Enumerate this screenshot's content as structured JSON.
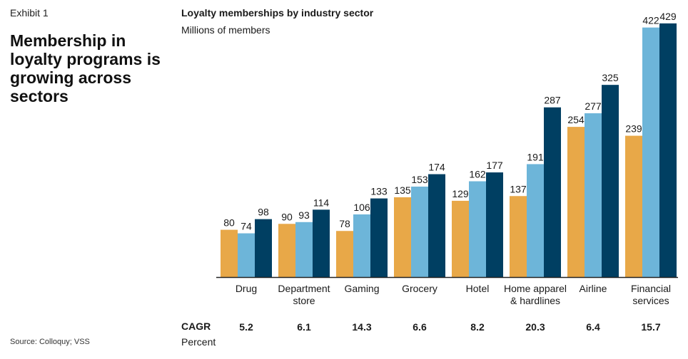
{
  "exhibit_label": "Exhibit 1",
  "headline": "Membership in loyalty programs is growing across sectors",
  "source": "Source: Colloquy; VSS",
  "colors": {
    "series1": "#E8A848",
    "series2": "#6DB5D9",
    "series3": "#003F62",
    "axis": "#222222"
  },
  "chart_data": {
    "type": "bar",
    "title": "Loyalty memberships by industry sector",
    "subtitle": "Millions of members",
    "xlabel": "",
    "ylabel": "",
    "ylim": [
      0,
      430
    ],
    "grid": false,
    "categories": [
      "Drug",
      "Department\nstore",
      "Gaming",
      "Grocery",
      "Hotel",
      "Home apparel\n& hardlines",
      "Airline",
      "Financial\nservices"
    ],
    "series": [
      {
        "values": [
          80,
          90,
          78,
          135,
          129,
          137,
          254,
          239
        ]
      },
      {
        "values": [
          74,
          93,
          106,
          153,
          162,
          191,
          277,
          422
        ]
      },
      {
        "values": [
          98,
          114,
          133,
          174,
          177,
          287,
          325,
          429
        ]
      }
    ],
    "cagr": {
      "label": "CAGR",
      "unit": "Percent",
      "values": [
        "5.2",
        "6.1",
        "14.3",
        "6.6",
        "8.2",
        "20.3",
        "6.4",
        "15.7"
      ]
    }
  }
}
